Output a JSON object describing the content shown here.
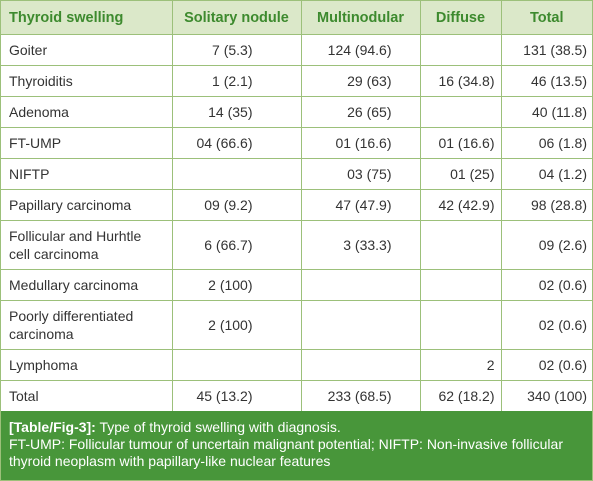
{
  "table": {
    "header": [
      "Thyroid swelling",
      "Solitary nodule",
      "Multinodular",
      "Diffuse",
      "Total"
    ],
    "rows": [
      [
        "Goiter",
        "7 (5.3)",
        "124 (94.6)",
        null,
        "131 (38.5)"
      ],
      [
        "Thyroiditis",
        "1 (2.1)",
        "29 (63)",
        "16 (34.8)",
        "46 (13.5)"
      ],
      [
        "Adenoma",
        "14 (35)",
        "26 (65)",
        null,
        "40 (11.8)"
      ],
      [
        "FT-UMP",
        "04 (66.6)",
        "01 (16.6)",
        "01 (16.6)",
        "06 (1.8)"
      ],
      [
        "NIFTP",
        null,
        "03 (75)",
        "01 (25)",
        "04 (1.2)"
      ],
      [
        "Papillary carcinoma",
        "09 (9.2)",
        "47 (47.9)",
        "42 (42.9)",
        "98 (28.8)"
      ],
      [
        "Follicular and Hurhtle cell carcinoma",
        "6 (66.7)",
        "3 (33.3)",
        null,
        "09 (2.6)"
      ],
      [
        "Medullary carcinoma",
        "2 (100)",
        null,
        null,
        "02 (0.6)"
      ],
      [
        "Poorly differentiated carcinoma",
        "2 (100)",
        null,
        null,
        "02 (0.6)"
      ],
      [
        "Lymphoma",
        null,
        null,
        "2",
        "02 (0.6)"
      ],
      [
        "Total",
        "45 (13.2)",
        "233 (68.5)",
        "62 (18.2)",
        "340 (100)"
      ]
    ]
  },
  "caption": {
    "label": "[Table/Fig-3]:",
    "title": "Type of thyroid swelling with diagnosis.",
    "note": "FT-UMP: Follicular tumour of uncertain malignant potential; NIFTP: Non-invasive follicular thyroid neoplasm with papillary-like nuclear features"
  }
}
